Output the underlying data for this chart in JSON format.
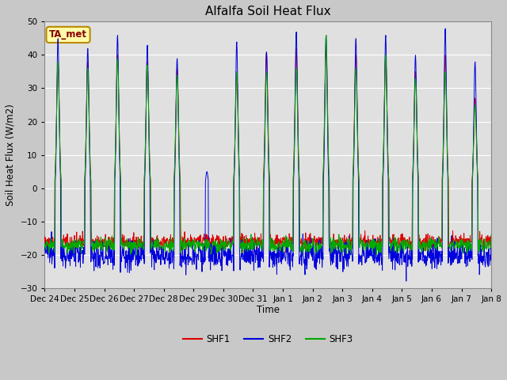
{
  "title": "Alfalfa Soil Heat Flux",
  "ylabel": "Soil Heat Flux (W/m2)",
  "xlabel": "Time",
  "ylim": [
    -30,
    50
  ],
  "yticks": [
    -30,
    -20,
    -10,
    0,
    10,
    20,
    30,
    40,
    50
  ],
  "fig_bg_color": "#c8c8c8",
  "plot_bg_color": "#e0e0e0",
  "shf1_color": "#dd0000",
  "shf2_color": "#0000dd",
  "shf3_color": "#00aa00",
  "legend_label": "TA_met",
  "series_labels": [
    "SHF1",
    "SHF2",
    "SHF3"
  ],
  "n_days": 15,
  "points_per_day": 96,
  "ta_met_box_color": "#ffffaa",
  "ta_met_edge_color": "#bb8800",
  "ta_met_text_color": "#880000"
}
